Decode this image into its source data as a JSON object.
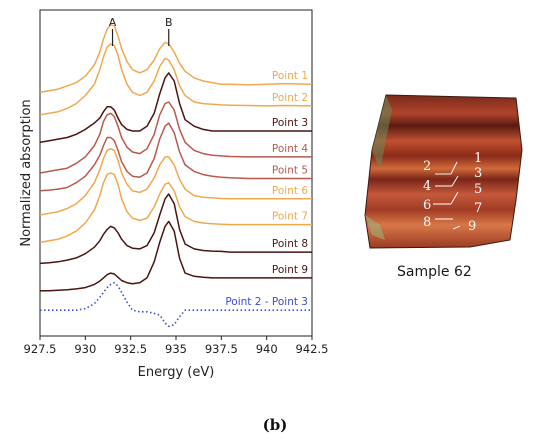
{
  "chart_data": {
    "type": "line",
    "xlabel": "Energy (eV)",
    "ylabel": "Normalized absorption",
    "xlim": [
      927.5,
      942.5
    ],
    "x_ticks": [
      "927.5",
      "930",
      "932.5",
      "935",
      "937.5",
      "940",
      "942.5"
    ],
    "peak_markers": [
      {
        "label": "A",
        "energy": 931.5
      },
      {
        "label": "B",
        "energy": 934.6
      }
    ],
    "x": [
      927.5,
      928.0,
      928.5,
      929.0,
      929.5,
      930.0,
      930.5,
      930.8,
      931.0,
      931.2,
      931.4,
      931.6,
      931.8,
      932.0,
      932.3,
      932.6,
      933.0,
      933.4,
      933.8,
      934.1,
      934.4,
      934.6,
      934.9,
      935.2,
      935.5,
      936.0,
      936.5,
      937.0,
      937.5,
      938.0,
      939.0,
      940.0,
      941.0,
      942.5
    ],
    "series": [
      {
        "name": "Point 1",
        "color": "#f0a850",
        "values": [
          7.75,
          7.8,
          7.85,
          7.95,
          8.05,
          8.25,
          8.6,
          9.0,
          9.4,
          9.7,
          9.85,
          9.8,
          9.5,
          9.1,
          8.7,
          8.45,
          8.35,
          8.45,
          8.75,
          9.1,
          9.3,
          9.25,
          9.0,
          8.65,
          8.4,
          8.2,
          8.1,
          8.05,
          8.0,
          8.0,
          7.98,
          8.0,
          8.02,
          8.0
        ]
      },
      {
        "name": "Point 2",
        "color": "#f0a850",
        "values": [
          7.05,
          7.1,
          7.15,
          7.25,
          7.4,
          7.65,
          8.0,
          8.45,
          8.85,
          9.15,
          9.25,
          9.2,
          8.9,
          8.45,
          8.0,
          7.75,
          7.65,
          7.75,
          8.1,
          8.55,
          8.8,
          8.75,
          8.45,
          7.95,
          7.65,
          7.45,
          7.4,
          7.38,
          7.36,
          7.35,
          7.34,
          7.33,
          7.34,
          7.33
        ]
      },
      {
        "name": "Point 3",
        "color": "#4a1410",
        "values": [
          6.2,
          6.25,
          6.3,
          6.35,
          6.45,
          6.6,
          6.8,
          6.95,
          7.15,
          7.3,
          7.3,
          7.2,
          6.95,
          6.75,
          6.6,
          6.55,
          6.55,
          6.7,
          7.1,
          7.7,
          8.2,
          8.35,
          8.1,
          7.4,
          6.9,
          6.7,
          6.6,
          6.55,
          6.55,
          6.55,
          6.55,
          6.55,
          6.55,
          6.55
        ]
      },
      {
        "name": "Point 4",
        "color": "#b85a4e",
        "values": [
          5.25,
          5.3,
          5.35,
          5.4,
          5.55,
          5.75,
          6.1,
          6.45,
          6.85,
          7.05,
          7.1,
          7.0,
          6.7,
          6.35,
          6.05,
          5.9,
          5.85,
          6.0,
          6.45,
          7.05,
          7.4,
          7.45,
          7.2,
          6.6,
          6.2,
          5.95,
          5.85,
          5.8,
          5.78,
          5.76,
          5.75,
          5.75,
          5.75,
          5.75
        ]
      },
      {
        "name": "Point 5",
        "color": "#b85a4e",
        "values": [
          4.7,
          4.72,
          4.75,
          4.8,
          4.95,
          5.15,
          5.5,
          5.8,
          6.1,
          6.35,
          6.35,
          6.25,
          5.95,
          5.6,
          5.3,
          5.15,
          5.12,
          5.25,
          5.7,
          6.3,
          6.7,
          6.8,
          6.5,
          5.9,
          5.5,
          5.3,
          5.2,
          5.15,
          5.12,
          5.1,
          5.08,
          5.08,
          5.08,
          5.08
        ]
      },
      {
        "name": "Point 6",
        "color": "#f0a850",
        "values": [
          3.95,
          4.0,
          4.05,
          4.15,
          4.3,
          4.55,
          4.95,
          5.35,
          5.7,
          5.95,
          6.0,
          5.95,
          5.65,
          5.25,
          4.9,
          4.7,
          4.65,
          4.75,
          5.1,
          5.5,
          5.75,
          5.75,
          5.5,
          5.05,
          4.75,
          4.55,
          4.5,
          4.48,
          4.46,
          4.45,
          4.45,
          4.45,
          4.45,
          4.45
        ]
      },
      {
        "name": "Point 7",
        "color": "#f0a850",
        "values": [
          3.1,
          3.15,
          3.2,
          3.3,
          3.45,
          3.7,
          4.1,
          4.55,
          4.95,
          5.2,
          5.25,
          5.2,
          4.9,
          4.45,
          4.05,
          3.85,
          3.78,
          3.85,
          4.2,
          4.6,
          4.9,
          4.95,
          4.7,
          4.2,
          3.9,
          3.75,
          3.7,
          3.68,
          3.66,
          3.65,
          3.65,
          3.65,
          3.65,
          3.65
        ]
      },
      {
        "name": "Point 8",
        "color": "#4a1410",
        "values": [
          2.45,
          2.47,
          2.5,
          2.55,
          2.62,
          2.75,
          2.95,
          3.15,
          3.35,
          3.5,
          3.6,
          3.55,
          3.4,
          3.2,
          3.0,
          2.92,
          2.9,
          3.0,
          3.4,
          3.95,
          4.45,
          4.6,
          4.3,
          3.5,
          3.05,
          2.9,
          2.85,
          2.83,
          2.82,
          2.8,
          2.8,
          2.8,
          2.8,
          2.8
        ]
      },
      {
        "name": "Point 9",
        "color": "#4a1410",
        "values": [
          1.6,
          1.6,
          1.62,
          1.63,
          1.66,
          1.7,
          1.8,
          1.9,
          2.0,
          2.1,
          2.15,
          2.12,
          2.02,
          1.92,
          1.85,
          1.82,
          1.85,
          2.0,
          2.5,
          3.1,
          3.6,
          3.75,
          3.45,
          2.6,
          2.15,
          2.05,
          2.02,
          2.0,
          2.0,
          2.0,
          2.0,
          2.0,
          2.0,
          2.0
        ]
      },
      {
        "name": "Point 2 - Point 3",
        "color": "#3a4fd0",
        "dashed": true,
        "values": [
          1.0,
          1.0,
          1.0,
          1.0,
          1.0,
          1.05,
          1.2,
          1.4,
          1.55,
          1.7,
          1.8,
          1.85,
          1.75,
          1.55,
          1.25,
          1.0,
          0.95,
          0.95,
          0.9,
          0.85,
          0.6,
          0.5,
          0.55,
          0.8,
          1.0,
          1.0,
          1.0,
          1.0,
          1.0,
          1.0,
          1.0,
          1.0,
          1.0,
          1.0
        ]
      }
    ]
  },
  "sample": {
    "label": "Sample 62",
    "markers": [
      "1",
      "2",
      "3",
      "4",
      "5",
      "6",
      "7",
      "8",
      "9"
    ]
  },
  "figure_caption": "(b)"
}
